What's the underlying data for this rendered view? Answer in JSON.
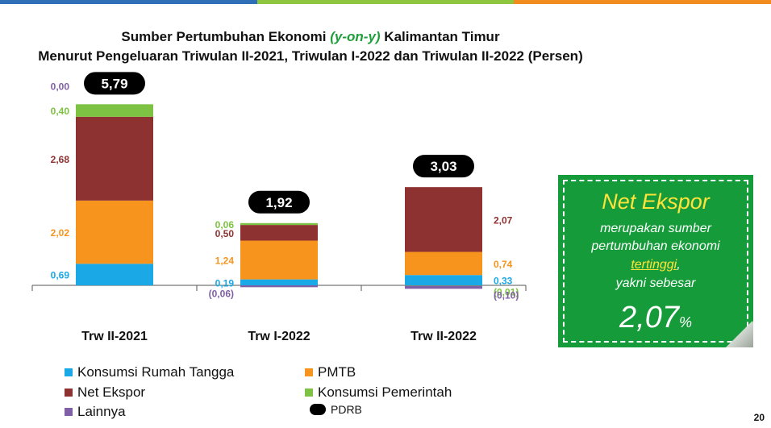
{
  "colors": {
    "topbar": [
      "#2f6fb8",
      "#8fc63f",
      "#f28c1e"
    ],
    "callout_bg": "#169b3a",
    "callout_accent": "#ffe33a"
  },
  "title": {
    "line1_part1": "Sumber Pertumbuhan Ekonomi ",
    "line1_highlight": "(y-on-y)",
    "line1_part2": " Kalimantan Timur",
    "line2": "Menurut Pengeluaran Triwulan II-2021, Triwulan I-2022 dan Triwulan II-2022 (Persen)"
  },
  "chart_data": {
    "type": "bar",
    "stacked": true,
    "categories": [
      "Trw II-2021",
      "Trw I-2022",
      "Trw II-2022"
    ],
    "series": [
      {
        "name": "Konsumsi Rumah Tangga",
        "color": "#1aa9e6",
        "values": [
          0.69,
          0.19,
          0.33
        ],
        "labels": [
          "0,69",
          "0,19",
          "0,33"
        ]
      },
      {
        "name": "PMTB",
        "color": "#f7941d",
        "values": [
          2.02,
          1.24,
          0.74
        ],
        "labels": [
          "2,02",
          "1,24",
          "0,74"
        ]
      },
      {
        "name": "Net Ekspor",
        "color": "#8e3131",
        "values": [
          2.68,
          0.5,
          2.07
        ],
        "labels": [
          "2,68",
          "0,50",
          "2,07"
        ]
      },
      {
        "name": "Konsumsi Pemerintah",
        "color": "#7dc242",
        "values": [
          0.4,
          0.06,
          -0.01
        ],
        "labels": [
          "0,40",
          "0,06",
          "(0,01)"
        ]
      },
      {
        "name": "Lainnya",
        "color": "#7f5fa5",
        "values": [
          0.0,
          -0.06,
          -0.1
        ],
        "labels": [
          "0,00",
          "(0,06)",
          "(0,10)"
        ]
      }
    ],
    "totals": {
      "name": "PDRB",
      "values": [
        5.79,
        1.92,
        3.03
      ],
      "labels": [
        "5,79",
        "1,92",
        "3,03"
      ]
    }
  },
  "callout": {
    "title": "Net Ekspor",
    "line1": "merupakan sumber",
    "line2": "pertumbuhan ekonomi",
    "line3": "tertinggi",
    "line3_suffix": ",",
    "line4": "yakni sebesar",
    "value": "2,07",
    "unit": "%"
  },
  "page_number": "20"
}
